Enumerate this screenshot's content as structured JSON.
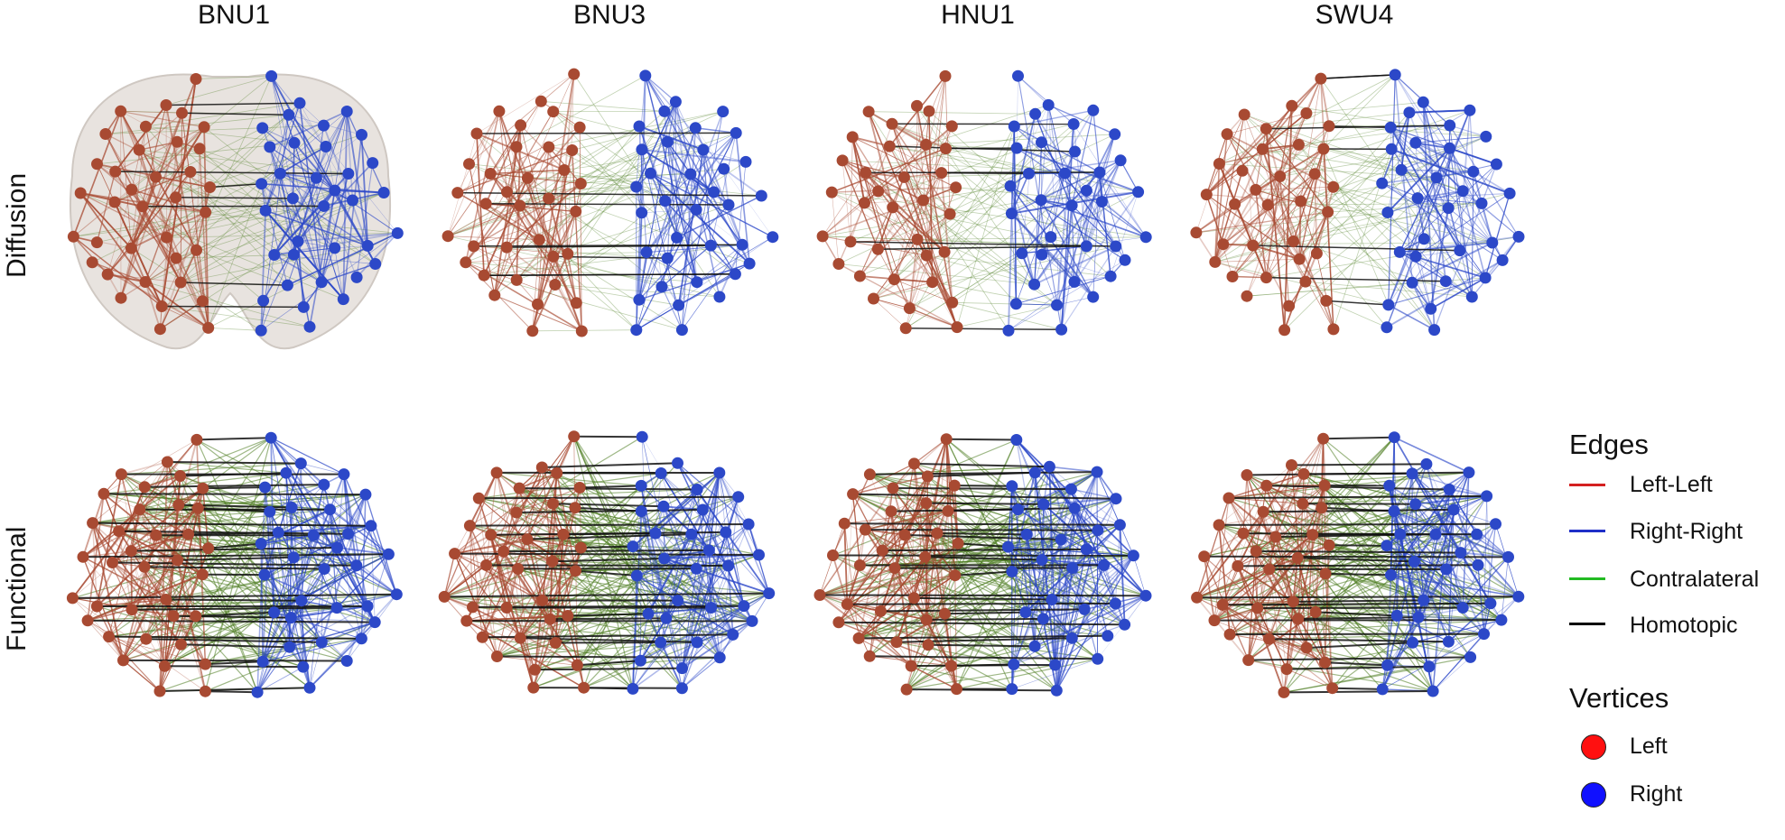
{
  "columns": [
    "BNU1",
    "BNU3",
    "HNU1",
    "SWU4"
  ],
  "rows": [
    "Diffusion",
    "Functional"
  ],
  "legend": {
    "edges_title": "Edges",
    "edges": [
      {
        "label": "Left-Left",
        "color": "#d42020"
      },
      {
        "label": "Right-Right",
        "color": "#1f2fc8"
      },
      {
        "label": "Contralateral",
        "color": "#22bb22"
      },
      {
        "label": "Homotopic",
        "color": "#000000"
      }
    ],
    "vertices_title": "Vertices",
    "vertices": [
      {
        "label": "Left",
        "color": "#ff1010"
      },
      {
        "label": "Right",
        "color": "#1010ff"
      }
    ]
  },
  "colors": {
    "left_node": "#a84a32",
    "right_node": "#2c48c8",
    "left_edge": "#a84a32",
    "right_edge": "#2c48c8",
    "contra_edge": "#4e7d22",
    "homotopic_edge": "#111111",
    "brain_fill": "#e8e3df"
  }
}
